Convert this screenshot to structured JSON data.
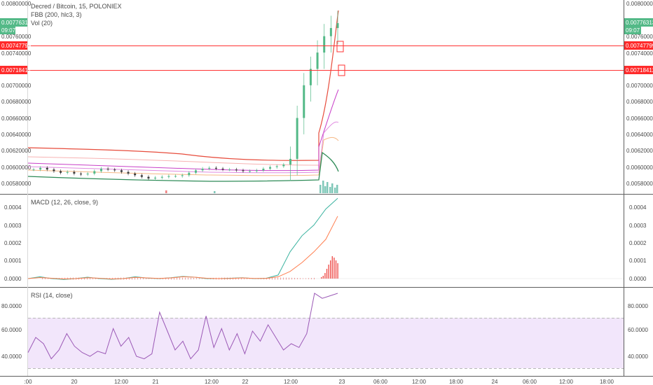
{
  "main_pane": {
    "title": "Decred / Bitcoin, 15, POLONIEX",
    "indicator_fbb": "FBB (200, hlc3, 3)",
    "indicator_vol": "Vol (20)",
    "last_price": "0.00776313",
    "countdown": "09:07",
    "price_ticks": [
      "0.00800000",
      "0.00760000",
      "0.00740000",
      "0.00700000",
      "0.00680000",
      "0.00660000",
      "0.00640000",
      "0.00620000",
      "0.00600000",
      "0.00580000"
    ],
    "hline_upper_label": "0.00747799",
    "hline_lower_label": "0.00718412"
  },
  "macd_pane": {
    "title": "MACD (12, 26, close, 9)",
    "ticks": [
      "0.0004",
      "0.0003",
      "0.0002",
      "0.0001",
      "0.0000"
    ]
  },
  "rsi_pane": {
    "title": "RSI (14, close)",
    "ticks": [
      "80.0000",
      "60.0000",
      "40.0000"
    ]
  },
  "time_axis": {
    "labels": [
      ":00",
      "20",
      "12:00",
      "21",
      "12:00",
      "22",
      "12:00",
      "23",
      "06:00",
      "12:00",
      "18:00",
      "24",
      "06:00",
      "12:00",
      "18:00"
    ]
  },
  "chart_data": [
    {
      "type": "candlestick",
      "title": "Decred / Bitcoin, 15, POLONIEX",
      "ylim": [
        0.00572,
        0.008
      ],
      "series": [
        {
          "name": "Decred / Bitcoin",
          "values": [
            0.00597,
            0.00599,
            0.00597,
            0.00595,
            0.00593,
            0.00594,
            0.00592,
            0.00591,
            0.00592,
            0.00595,
            0.00598,
            0.00597,
            0.00596,
            0.00594,
            0.00592,
            0.0059,
            0.00588,
            0.00586,
            0.00587,
            0.00588,
            0.00589,
            0.00589,
            0.0059,
            0.00593,
            0.00596,
            0.00598,
            0.00599,
            0.00598,
            0.00597,
            0.00597,
            0.00596,
            0.00595,
            0.00595,
            0.00596,
            0.00598,
            0.006,
            0.00601,
            0.00603,
            0.0061,
            0.0066,
            0.007,
            0.0072,
            0.0074,
            0.0076,
            0.0077,
            0.00776
          ]
        }
      ],
      "colors": {
        "up": "#53b987",
        "down": "#3a3a3a",
        "last_price": "#53b987",
        "hline": "#ff0000"
      },
      "horizontal_lines": [
        0.00747799,
        0.00718412
      ]
    },
    {
      "type": "line",
      "title": "MACD (12, 26, close, 9)",
      "ylim": [
        -1e-05,
        0.00044
      ],
      "series": [
        {
          "values": [
            0.0,
            1e-05,
            0.0,
            -5e-06,
            0.0,
            8e-06,
            0.0,
            -4e-06,
            0.0,
            1e-05,
            3e-06,
            0.0,
            5e-06,
            1.2e-05,
            8e-06,
            0.0,
            0.0,
            2e-06,
            5e-06,
            0.0,
            2e-06,
            2e-05,
            0.00015,
            0.00024,
            0.0003,
            0.00039,
            0.00045
          ]
        },
        {
          "values": [
            0.0,
            6e-06,
            2e-06,
            -2e-06,
            0.0,
            5e-06,
            2e-06,
            -2e-06,
            0.0,
            7e-06,
            4e-06,
            1e-06,
            4e-06,
            1e-05,
            8e-06,
            2e-06,
            0.0,
            1e-06,
            4e-06,
            1e-06,
            1e-06,
            1e-05,
            4e-05,
            9e-05,
            0.00015,
            0.00022,
            0.00035
          ]
        }
      ]
    },
    {
      "type": "line",
      "title": "RSI (14, close)",
      "ylim": [
        25,
        95
      ],
      "series": [
        {
          "values": [
            43,
            55,
            50,
            38,
            45,
            58,
            48,
            43,
            40,
            44,
            42,
            62,
            48,
            55,
            40,
            38,
            42,
            75,
            60,
            45,
            52,
            38,
            45,
            72,
            47,
            62,
            45,
            58,
            42,
            60,
            52,
            65,
            55,
            45,
            50,
            47,
            58,
            90,
            86,
            88,
            90
          ]
        }
      ]
    }
  ]
}
